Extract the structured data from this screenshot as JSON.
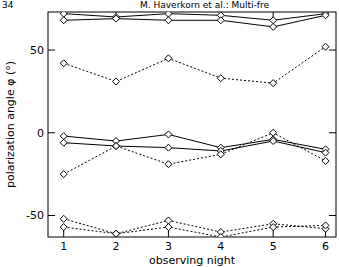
{
  "chart_data": {
    "type": "line",
    "annotations": [
      "34",
      "M. Haverkorn et al.: Multi-fre"
    ],
    "x_label": "observing night",
    "y_label": "polarization angle φ (°)",
    "x": [
      1,
      2,
      3,
      4,
      5,
      6
    ],
    "xlim": [
      0.7,
      6.2
    ],
    "xticks": [
      1,
      2,
      3,
      4,
      5,
      6
    ],
    "ylim": [
      -63,
      73
    ],
    "yticks": [
      -50,
      0,
      50
    ],
    "series": [
      {
        "color": "#000000",
        "line_style": "solid",
        "marker": "diamond",
        "values": [
          72,
          70,
          72,
          71,
          68,
          72
        ]
      },
      {
        "color": "#000000",
        "line_style": "solid",
        "marker": "diamond",
        "values": [
          68,
          69,
          68,
          68,
          64,
          71
        ]
      },
      {
        "color": "#000000",
        "line_style": "dotted",
        "marker": "diamond",
        "values": [
          42,
          31,
          45,
          33,
          30,
          52
        ]
      },
      {
        "color": "#000000",
        "line_style": "solid",
        "marker": "diamond",
        "values": [
          -2,
          -5,
          -1,
          -9,
          -4,
          -10
        ]
      },
      {
        "color": "#000000",
        "line_style": "solid",
        "marker": "diamond",
        "values": [
          -6,
          -8,
          -9,
          -11,
          -5,
          -12
        ]
      },
      {
        "color": "#000000",
        "line_style": "dotted",
        "marker": "diamond",
        "values": [
          -25,
          -8,
          -19,
          -13,
          0,
          -17
        ]
      },
      {
        "color": "#000000",
        "line_style": "dotted",
        "marker": "diamond",
        "values": [
          -52,
          -61,
          -53,
          -60,
          -55,
          -58
        ]
      },
      {
        "color": "#000000",
        "line_style": "dotted",
        "marker": "diamond",
        "values": [
          -57,
          -61,
          -57,
          -63,
          -57,
          -56
        ]
      }
    ]
  }
}
